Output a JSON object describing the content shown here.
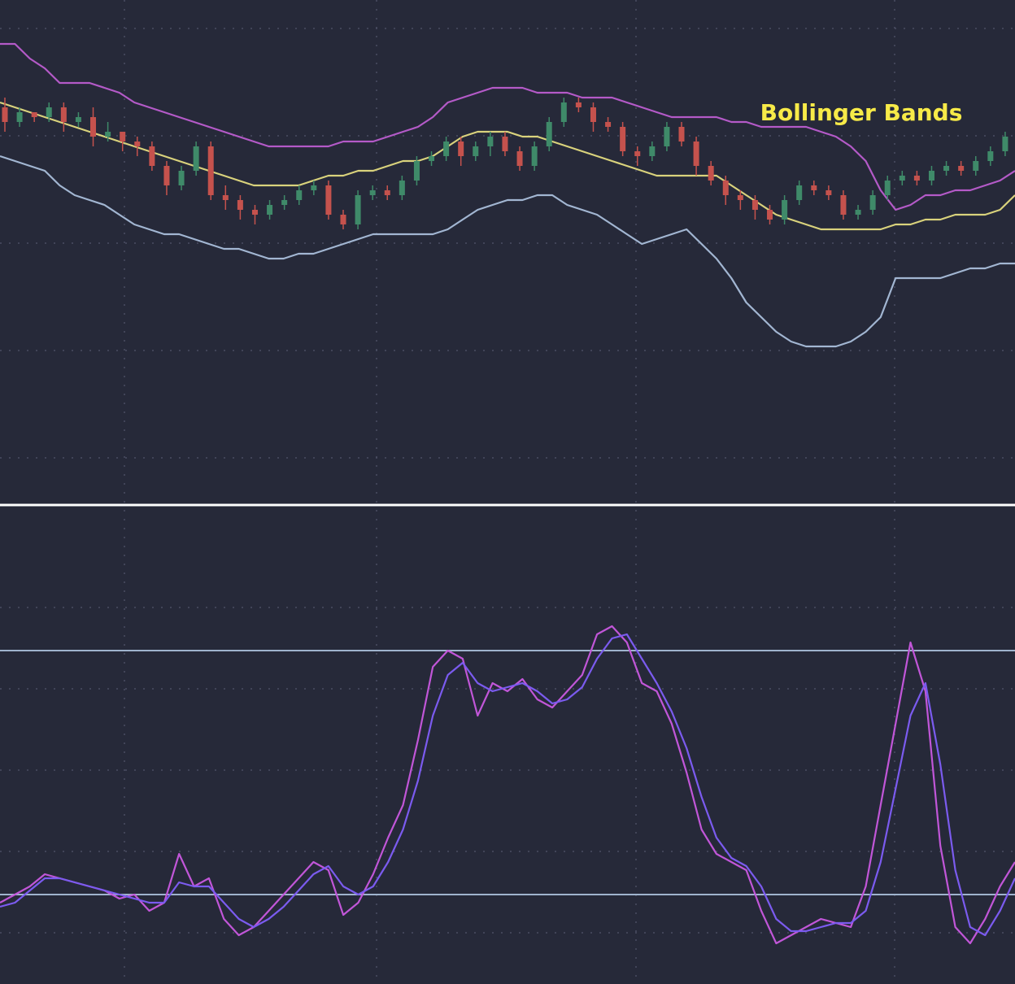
{
  "chart_data": [
    {
      "type": "candlestick",
      "title": "Bollinger Bands",
      "grid": true,
      "ylim": [
        0,
        100
      ],
      "series": [
        {
          "name": "",
          "color": "#b45ac8",
          "values": [
            91,
            91,
            88,
            86,
            83,
            83,
            83,
            82,
            81,
            79,
            78,
            77,
            76,
            75,
            74,
            73,
            72,
            71,
            70,
            70,
            70,
            70,
            70,
            71,
            71,
            71,
            72,
            73,
            74,
            76,
            79,
            80,
            81,
            82,
            82,
            82,
            81,
            81,
            81,
            80,
            80,
            80,
            79,
            78,
            77,
            76,
            76,
            76,
            76,
            75,
            75,
            74,
            74,
            74,
            74,
            73,
            72,
            70,
            67,
            61,
            57,
            58,
            60,
            60,
            61,
            61,
            62,
            63,
            65
          ]
        },
        {
          "name": "",
          "color": "#d9d27c",
          "values": [
            79,
            78,
            77,
            76,
            75,
            74,
            73,
            72,
            71,
            70,
            69,
            68,
            67,
            66,
            65,
            64,
            63,
            62,
            62,
            62,
            62,
            63,
            64,
            64,
            65,
            65,
            66,
            67,
            67,
            68,
            70,
            72,
            73,
            73,
            73,
            72,
            72,
            71,
            70,
            69,
            68,
            67,
            66,
            65,
            64,
            64,
            64,
            64,
            64,
            62,
            60,
            58,
            56,
            55,
            54,
            53,
            53,
            53,
            53,
            53,
            54,
            54,
            55,
            55,
            56,
            56,
            56,
            57,
            60
          ]
        },
        {
          "name": "",
          "color": "#a2b6d2",
          "values": [
            68,
            67,
            66,
            65,
            62,
            60,
            59,
            58,
            56,
            54,
            53,
            52,
            52,
            51,
            50,
            49,
            49,
            48,
            47,
            47,
            48,
            48,
            49,
            50,
            51,
            52,
            52,
            52,
            52,
            52,
            53,
            55,
            57,
            58,
            59,
            59,
            60,
            60,
            58,
            57,
            56,
            54,
            52,
            50,
            51,
            52,
            53,
            50,
            47,
            43,
            38,
            35,
            32,
            30,
            29,
            29,
            29,
            30,
            32,
            35,
            43,
            43,
            43,
            43,
            44,
            45,
            45,
            46,
            46
          ]
        }
      ],
      "candles": [
        [
          78,
          75,
          80,
          73
        ],
        [
          75,
          77,
          78,
          74
        ],
        [
          77,
          76,
          77,
          75
        ],
        [
          76,
          78,
          79,
          75
        ],
        [
          78,
          75,
          79,
          73
        ],
        [
          75,
          76,
          77,
          74
        ],
        [
          76,
          72,
          78,
          70
        ],
        [
          72,
          73,
          75,
          71
        ],
        [
          73,
          71,
          73,
          69
        ],
        [
          71,
          70,
          72,
          68
        ],
        [
          70,
          66,
          71,
          65
        ],
        [
          66,
          62,
          67,
          60
        ],
        [
          62,
          65,
          66,
          61
        ],
        [
          65,
          70,
          71,
          64
        ],
        [
          70,
          60,
          71,
          59
        ],
        [
          60,
          59,
          62,
          57
        ],
        [
          59,
          57,
          60,
          55
        ],
        [
          57,
          56,
          58,
          54
        ],
        [
          56,
          58,
          59,
          55
        ],
        [
          58,
          59,
          60,
          57
        ],
        [
          59,
          61,
          62,
          58
        ],
        [
          61,
          62,
          63,
          60
        ],
        [
          62,
          56,
          63,
          55
        ],
        [
          56,
          54,
          57,
          53
        ],
        [
          54,
          60,
          61,
          53
        ],
        [
          60,
          61,
          62,
          59
        ],
        [
          61,
          60,
          62,
          59
        ],
        [
          60,
          63,
          64,
          59
        ],
        [
          63,
          67,
          68,
          62
        ],
        [
          67,
          68,
          69,
          66
        ],
        [
          68,
          71,
          72,
          67
        ],
        [
          71,
          68,
          72,
          66
        ],
        [
          68,
          70,
          71,
          67
        ],
        [
          70,
          72,
          73,
          68
        ],
        [
          72,
          69,
          73,
          68
        ],
        [
          69,
          66,
          70,
          65
        ],
        [
          66,
          70,
          71,
          65
        ],
        [
          70,
          75,
          76,
          69
        ],
        [
          75,
          79,
          80,
          74
        ],
        [
          79,
          78,
          80,
          77
        ],
        [
          78,
          75,
          79,
          73
        ],
        [
          75,
          74,
          76,
          73
        ],
        [
          74,
          69,
          75,
          68
        ],
        [
          69,
          68,
          70,
          66
        ],
        [
          68,
          70,
          71,
          67
        ],
        [
          70,
          74,
          75,
          69
        ],
        [
          74,
          71,
          75,
          70
        ],
        [
          71,
          66,
          72,
          64
        ],
        [
          66,
          63,
          67,
          62
        ],
        [
          63,
          60,
          64,
          58
        ],
        [
          60,
          59,
          61,
          57
        ],
        [
          59,
          57,
          60,
          55
        ],
        [
          57,
          55,
          58,
          54
        ],
        [
          55,
          59,
          60,
          54
        ],
        [
          59,
          62,
          63,
          58
        ],
        [
          62,
          61,
          63,
          60
        ],
        [
          61,
          60,
          62,
          59
        ],
        [
          60,
          56,
          61,
          55
        ],
        [
          56,
          57,
          58,
          55
        ],
        [
          57,
          60,
          61,
          56
        ],
        [
          60,
          63,
          64,
          59
        ],
        [
          63,
          64,
          65,
          62
        ],
        [
          64,
          63,
          65,
          62
        ],
        [
          63,
          65,
          66,
          62
        ],
        [
          65,
          66,
          67,
          64
        ],
        [
          66,
          65,
          67,
          64
        ],
        [
          65,
          67,
          68,
          64
        ],
        [
          67,
          69,
          70,
          66
        ],
        [
          69,
          72,
          73,
          68
        ]
      ]
    },
    {
      "type": "line",
      "ylim": [
        0,
        100
      ],
      "grid": true,
      "reference_lines": [
        80,
        20
      ],
      "series": [
        {
          "name": "",
          "color": "#c156d8",
          "values": [
            18,
            20,
            22,
            25,
            24,
            23,
            22,
            21,
            19,
            20,
            16,
            18,
            30,
            22,
            24,
            14,
            10,
            12,
            16,
            20,
            24,
            28,
            26,
            15,
            18,
            25,
            34,
            42,
            58,
            76,
            80,
            78,
            64,
            72,
            70,
            73,
            68,
            66,
            70,
            74,
            84,
            86,
            82,
            72,
            70,
            62,
            50,
            36,
            30,
            28,
            26,
            16,
            8,
            10,
            12,
            14,
            13,
            12,
            22,
            42,
            62,
            82,
            70,
            32,
            12,
            8,
            14,
            22,
            28
          ]
        },
        {
          "name": "",
          "color": "#7b5bef",
          "values": [
            17,
            18,
            21,
            24,
            24,
            23,
            22,
            21,
            20,
            19,
            18,
            18,
            23,
            22,
            22,
            18,
            14,
            12,
            14,
            17,
            21,
            25,
            27,
            22,
            20,
            22,
            28,
            36,
            48,
            64,
            74,
            77,
            72,
            70,
            71,
            72,
            70,
            67,
            68,
            71,
            78,
            83,
            84,
            78,
            72,
            65,
            56,
            44,
            34,
            29,
            27,
            22,
            14,
            11,
            11,
            12,
            13,
            13,
            16,
            28,
            46,
            64,
            72,
            52,
            26,
            12,
            10,
            16,
            24
          ]
        }
      ]
    }
  ]
}
